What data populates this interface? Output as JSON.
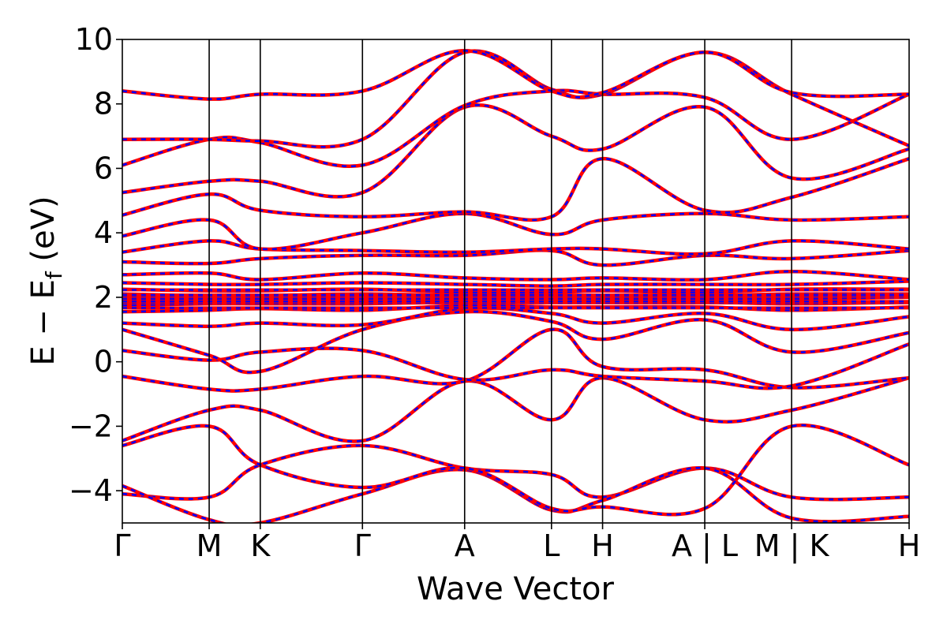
{
  "chart_data": {
    "type": "line",
    "title": "",
    "xlabel": "Wave Vector",
    "ylabel": "E − E",
    "ylabel_sub": "f",
    "ylabel_unit": " (eV)",
    "ylim": [
      -5,
      10
    ],
    "y_ticks": [
      {
        "value": -4,
        "label": "−4"
      },
      {
        "value": -2,
        "label": "−2"
      },
      {
        "value": 0,
        "label": "0"
      },
      {
        "value": 2,
        "label": "2"
      },
      {
        "value": 4,
        "label": "4"
      },
      {
        "value": 6,
        "label": "6"
      },
      {
        "value": 8,
        "label": "8"
      },
      {
        "value": 10,
        "label": "10"
      }
    ],
    "xlim": [
      0,
      7.7
    ],
    "k_points": [
      {
        "x": 0.0,
        "label": "Γ"
      },
      {
        "x": 0.85,
        "label": "M"
      },
      {
        "x": 1.35,
        "label": "K"
      },
      {
        "x": 2.35,
        "label": "Γ"
      },
      {
        "x": 3.35,
        "label": "A"
      },
      {
        "x": 4.2,
        "label": "L"
      },
      {
        "x": 4.7,
        "label": "H"
      },
      {
        "x": 5.7,
        "label": "A | L"
      },
      {
        "x": 6.55,
        "label": "M | K"
      },
      {
        "x": 7.7,
        "label": "H"
      }
    ],
    "segment_label_positions": [
      0.0,
      0.85,
      1.35,
      2.35,
      3.35,
      4.2,
      4.7,
      5.55,
      5.95,
      6.4,
      6.75,
      7.7
    ],
    "grid": false,
    "legend": "none",
    "series": [
      {
        "style": "solid",
        "color": "#ff0000"
      },
      {
        "style": "dashed",
        "color": "#0000ff"
      }
    ],
    "bands": [
      [
        [
          0.0,
          -4.1
        ],
        [
          0.85,
          -4.2
        ],
        [
          1.35,
          -3.2
        ],
        [
          2.35,
          -2.6
        ],
        [
          3.35,
          -3.3
        ],
        [
          4.2,
          -3.5
        ],
        [
          4.7,
          -4.2
        ],
        [
          5.7,
          -3.3
        ],
        [
          6.55,
          -4.2
        ],
        [
          7.7,
          -4.2
        ]
      ],
      [
        [
          0.0,
          -3.85
        ],
        [
          0.85,
          -4.9
        ],
        [
          1.35,
          -5.0
        ],
        [
          2.35,
          -4.1
        ],
        [
          3.35,
          -3.35
        ],
        [
          4.2,
          -4.6
        ],
        [
          4.7,
          -4.3
        ],
        [
          5.7,
          -3.3
        ],
        [
          6.55,
          -4.85
        ],
        [
          7.7,
          -4.8
        ]
      ],
      [
        [
          0.0,
          -2.6
        ],
        [
          0.85,
          -2.0
        ],
        [
          1.35,
          -3.2
        ],
        [
          2.35,
          -3.9
        ],
        [
          3.35,
          -3.3
        ],
        [
          4.2,
          -4.55
        ],
        [
          4.7,
          -4.5
        ],
        [
          5.7,
          -4.55
        ],
        [
          6.55,
          -2.0
        ],
        [
          7.7,
          -3.2
        ]
      ],
      [
        [
          0.0,
          -2.45
        ],
        [
          0.85,
          -1.5
        ],
        [
          1.35,
          -1.5
        ],
        [
          2.35,
          -2.45
        ],
        [
          3.35,
          -0.6
        ],
        [
          4.2,
          -1.8
        ],
        [
          4.7,
          -0.5
        ],
        [
          5.7,
          -1.8
        ],
        [
          6.55,
          -1.5
        ],
        [
          7.7,
          -0.5
        ]
      ],
      [
        [
          0.0,
          -0.45
        ],
        [
          0.85,
          -0.85
        ],
        [
          1.35,
          -0.85
        ],
        [
          2.35,
          -0.45
        ],
        [
          3.35,
          -0.6
        ],
        [
          4.2,
          1.0
        ],
        [
          4.7,
          -0.15
        ],
        [
          5.7,
          -0.25
        ],
        [
          6.55,
          -0.8
        ],
        [
          7.7,
          -0.5
        ]
      ],
      [
        [
          0.0,
          0.35
        ],
        [
          0.85,
          0.05
        ],
        [
          1.35,
          0.3
        ],
        [
          2.35,
          0.35
        ],
        [
          3.35,
          -0.55
        ],
        [
          4.2,
          -0.25
        ],
        [
          4.7,
          -0.45
        ],
        [
          5.7,
          -0.6
        ],
        [
          6.55,
          -0.75
        ],
        [
          7.7,
          0.55
        ]
      ],
      [
        [
          0.0,
          1.0
        ],
        [
          0.85,
          0.2
        ],
        [
          1.35,
          -0.3
        ],
        [
          2.35,
          1.0
        ],
        [
          3.35,
          1.55
        ],
        [
          4.2,
          1.25
        ],
        [
          4.7,
          0.7
        ],
        [
          5.7,
          1.3
        ],
        [
          6.55,
          0.3
        ],
        [
          7.7,
          0.9
        ]
      ],
      [
        [
          0.0,
          1.2
        ],
        [
          0.85,
          1.1
        ],
        [
          1.35,
          1.2
        ],
        [
          2.35,
          1.15
        ],
        [
          3.35,
          1.65
        ],
        [
          4.2,
          1.5
        ],
        [
          4.7,
          1.2
        ],
        [
          5.7,
          1.5
        ],
        [
          6.55,
          1.0
        ],
        [
          7.7,
          1.4
        ]
      ],
      [
        [
          0.0,
          1.55
        ],
        [
          0.85,
          1.6
        ],
        [
          1.35,
          1.65
        ],
        [
          2.35,
          1.6
        ],
        [
          3.35,
          1.75
        ],
        [
          4.2,
          1.7
        ],
        [
          4.7,
          1.7
        ],
        [
          5.7,
          1.7
        ],
        [
          6.55,
          1.6
        ],
        [
          7.7,
          1.7
        ]
      ],
      [
        [
          0.0,
          1.75
        ],
        [
          0.85,
          1.8
        ],
        [
          1.35,
          1.8
        ],
        [
          2.35,
          1.8
        ],
        [
          3.35,
          1.85
        ],
        [
          4.2,
          1.85
        ],
        [
          4.7,
          1.85
        ],
        [
          5.7,
          1.85
        ],
        [
          6.55,
          1.8
        ],
        [
          7.7,
          1.85
        ]
      ],
      [
        [
          0.0,
          1.95
        ],
        [
          0.85,
          1.95
        ],
        [
          1.35,
          1.95
        ],
        [
          2.35,
          1.95
        ],
        [
          3.35,
          1.95
        ],
        [
          4.2,
          1.95
        ],
        [
          4.7,
          1.95
        ],
        [
          5.7,
          1.95
        ],
        [
          6.55,
          1.95
        ],
        [
          7.7,
          2.0
        ]
      ],
      [
        [
          0.0,
          2.1
        ],
        [
          0.85,
          2.05
        ],
        [
          1.35,
          2.05
        ],
        [
          2.35,
          2.1
        ],
        [
          3.35,
          2.05
        ],
        [
          4.2,
          2.05
        ],
        [
          4.7,
          2.05
        ],
        [
          5.7,
          2.05
        ],
        [
          6.55,
          2.1
        ],
        [
          7.7,
          2.1
        ]
      ],
      [
        [
          0.0,
          2.25
        ],
        [
          0.85,
          2.2
        ],
        [
          1.35,
          2.2
        ],
        [
          2.35,
          2.25
        ],
        [
          3.35,
          2.15
        ],
        [
          4.2,
          2.15
        ],
        [
          4.7,
          2.2
        ],
        [
          5.7,
          2.15
        ],
        [
          6.55,
          2.25
        ],
        [
          7.7,
          2.25
        ]
      ],
      [
        [
          0.0,
          2.45
        ],
        [
          0.85,
          2.4
        ],
        [
          1.35,
          2.4
        ],
        [
          2.35,
          2.45
        ],
        [
          3.35,
          2.4
        ],
        [
          4.2,
          2.35
        ],
        [
          4.7,
          2.4
        ],
        [
          5.7,
          2.4
        ],
        [
          6.55,
          2.4
        ],
        [
          7.7,
          2.5
        ]
      ],
      [
        [
          0.0,
          2.7
        ],
        [
          0.85,
          2.75
        ],
        [
          1.35,
          2.55
        ],
        [
          2.35,
          2.75
        ],
        [
          3.35,
          2.6
        ],
        [
          4.2,
          2.55
        ],
        [
          4.7,
          2.6
        ],
        [
          5.7,
          2.55
        ],
        [
          6.55,
          2.8
        ],
        [
          7.7,
          2.55
        ]
      ],
      [
        [
          0.0,
          3.1
        ],
        [
          0.85,
          3.05
        ],
        [
          1.35,
          3.2
        ],
        [
          2.35,
          3.3
        ],
        [
          3.35,
          3.3
        ],
        [
          4.2,
          3.45
        ],
        [
          4.7,
          3.0
        ],
        [
          5.7,
          3.3
        ],
        [
          6.55,
          3.2
        ],
        [
          7.7,
          3.45
        ]
      ],
      [
        [
          0.0,
          3.4
        ],
        [
          0.85,
          3.75
        ],
        [
          1.35,
          3.5
        ],
        [
          2.35,
          3.45
        ],
        [
          3.35,
          3.4
        ],
        [
          4.2,
          3.5
        ],
        [
          4.7,
          3.5
        ],
        [
          5.7,
          3.35
        ],
        [
          6.55,
          3.75
        ],
        [
          7.7,
          3.5
        ]
      ],
      [
        [
          0.0,
          3.9
        ],
        [
          0.85,
          4.4
        ],
        [
          1.35,
          3.5
        ],
        [
          2.35,
          4.0
        ],
        [
          3.35,
          4.6
        ],
        [
          4.2,
          3.95
        ],
        [
          4.7,
          4.4
        ],
        [
          5.7,
          4.6
        ],
        [
          6.55,
          4.4
        ],
        [
          7.7,
          4.5
        ]
      ],
      [
        [
          0.0,
          4.55
        ],
        [
          0.85,
          5.2
        ],
        [
          1.35,
          4.7
        ],
        [
          2.35,
          4.5
        ],
        [
          3.35,
          4.65
        ],
        [
          4.2,
          4.5
        ],
        [
          4.7,
          6.3
        ],
        [
          5.7,
          4.7
        ],
        [
          6.55,
          5.1
        ],
        [
          7.7,
          6.3
        ]
      ],
      [
        [
          0.0,
          5.25
        ],
        [
          0.85,
          5.6
        ],
        [
          1.35,
          5.6
        ],
        [
          2.35,
          5.25
        ],
        [
          3.35,
          7.9
        ],
        [
          4.2,
          7.0
        ],
        [
          4.7,
          6.6
        ],
        [
          5.7,
          7.9
        ],
        [
          6.55,
          5.7
        ],
        [
          7.7,
          6.6
        ]
      ],
      [
        [
          0.0,
          6.1
        ],
        [
          0.85,
          6.9
        ],
        [
          1.35,
          6.8
        ],
        [
          2.35,
          6.1
        ],
        [
          3.35,
          7.95
        ],
        [
          4.2,
          8.4
        ],
        [
          4.7,
          8.3
        ],
        [
          5.7,
          8.2
        ],
        [
          6.55,
          6.9
        ],
        [
          7.7,
          8.3
        ]
      ],
      [
        [
          0.0,
          6.9
        ],
        [
          0.85,
          6.9
        ],
        [
          1.35,
          6.85
        ],
        [
          2.35,
          6.9
        ],
        [
          3.35,
          9.6
        ],
        [
          4.2,
          8.45
        ],
        [
          4.7,
          8.3
        ],
        [
          5.7,
          9.6
        ],
        [
          6.55,
          8.3
        ],
        [
          7.7,
          6.7
        ]
      ],
      [
        [
          0.0,
          8.4
        ],
        [
          0.85,
          8.15
        ],
        [
          1.35,
          8.3
        ],
        [
          2.35,
          8.4
        ],
        [
          3.35,
          9.65
        ],
        [
          4.2,
          8.4
        ],
        [
          4.7,
          8.35
        ],
        [
          5.7,
          9.6
        ],
        [
          6.55,
          8.35
        ],
        [
          7.7,
          8.3
        ]
      ]
    ]
  }
}
